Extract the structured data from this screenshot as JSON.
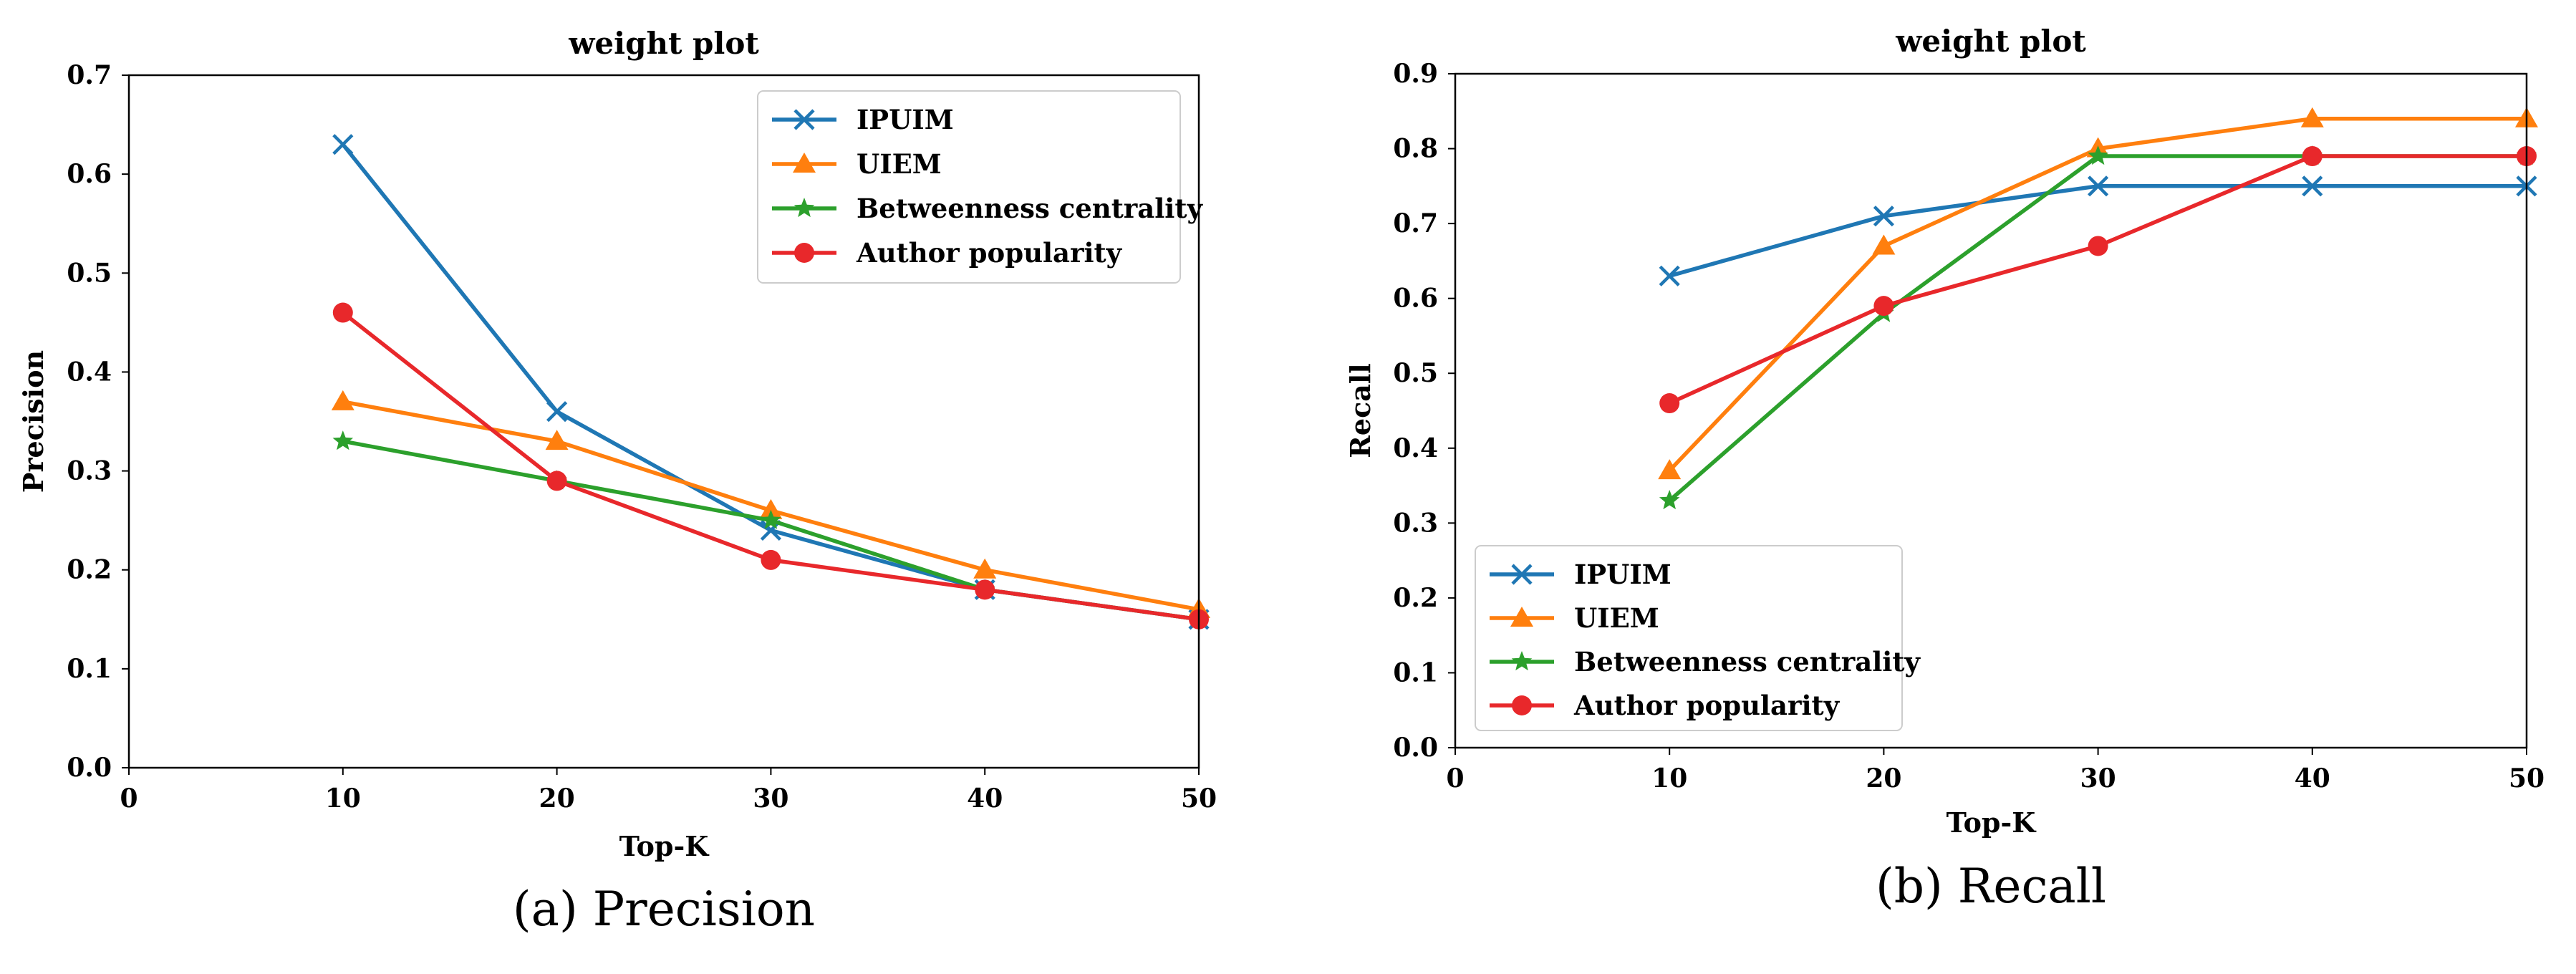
{
  "chart_data": [
    {
      "type": "line",
      "title": "weight plot",
      "xlabel": "Top-K",
      "ylabel": "Precision",
      "caption": "(a) Precision",
      "xlim": [
        0,
        50
      ],
      "ylim": [
        0,
        0.7
      ],
      "xticks": [
        "0",
        "10",
        "20",
        "30",
        "40",
        "50"
      ],
      "yticks": [
        "0.0",
        "0.1",
        "0.2",
        "0.3",
        "0.4",
        "0.5",
        "0.6",
        "0.7"
      ],
      "legend_position": "top-right",
      "x": [
        10,
        20,
        30,
        40,
        50
      ],
      "series": [
        {
          "name": "IPUIM",
          "color": "#1f77b4",
          "marker": "x",
          "values": [
            0.63,
            0.36,
            0.24,
            0.18,
            0.15
          ]
        },
        {
          "name": "UIEM",
          "color": "#ff7f0e",
          "marker": "triangle",
          "values": [
            0.37,
            0.33,
            0.26,
            0.2,
            0.16
          ]
        },
        {
          "name": "Betweenness centrality",
          "color": "#2ca02c",
          "marker": "star",
          "values": [
            0.33,
            0.29,
            0.25,
            0.18,
            0.15
          ]
        },
        {
          "name": "Author popularity",
          "color": "#e8282b",
          "marker": "circle",
          "values": [
            0.46,
            0.29,
            0.21,
            0.18,
            0.15
          ]
        }
      ]
    },
    {
      "type": "line",
      "title": "weight plot",
      "xlabel": "Top-K",
      "ylabel": "Recall",
      "caption": "(b) Recall",
      "xlim": [
        0,
        50
      ],
      "ylim": [
        0,
        0.9
      ],
      "xticks": [
        "0",
        "10",
        "20",
        "30",
        "40",
        "50"
      ],
      "yticks": [
        "0.0",
        "0.1",
        "0.2",
        "0.3",
        "0.4",
        "0.5",
        "0.6",
        "0.7",
        "0.8",
        "0.9"
      ],
      "legend_position": "bottom-left",
      "x": [
        10,
        20,
        30,
        40,
        50
      ],
      "series": [
        {
          "name": "IPUIM",
          "color": "#1f77b4",
          "marker": "x",
          "values": [
            0.63,
            0.71,
            0.75,
            0.75,
            0.75
          ]
        },
        {
          "name": "UIEM",
          "color": "#ff7f0e",
          "marker": "triangle",
          "values": [
            0.37,
            0.67,
            0.8,
            0.84,
            0.84
          ]
        },
        {
          "name": "Betweenness centrality",
          "color": "#2ca02c",
          "marker": "star",
          "values": [
            0.33,
            0.58,
            0.79,
            0.79,
            0.79
          ]
        },
        {
          "name": "Author popularity",
          "color": "#e8282b",
          "marker": "circle",
          "values": [
            0.46,
            0.59,
            0.67,
            0.79,
            0.79
          ]
        }
      ]
    }
  ]
}
